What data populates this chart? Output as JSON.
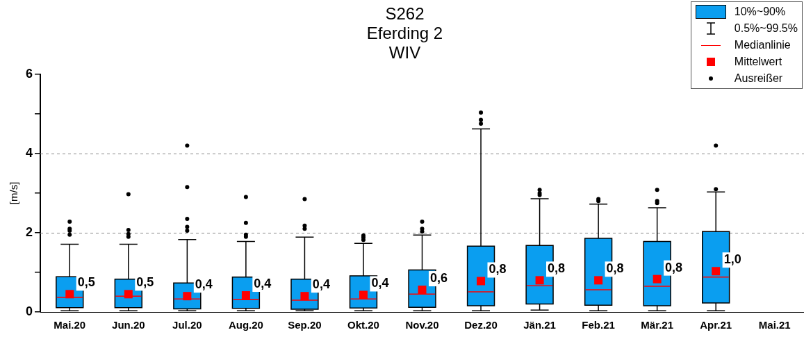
{
  "chart_data": {
    "type": "box",
    "title": "S262\nEferding 2\nWIV",
    "ylabel": "[m/s]",
    "categories": [
      "Mai.20",
      "Jun.20",
      "Jul.20",
      "Aug.20",
      "Sep.20",
      "Okt.20",
      "Nov.20",
      "Dez.20",
      "Jän.21",
      "Feb.21",
      "Mär.21",
      "Apr.21",
      "Mai.21"
    ],
    "series": [
      {
        "name": "10%~90%",
        "color": "#0a9ef0",
        "boxes": [
          {
            "low": 0.03,
            "q1": 0.11,
            "median": 0.37,
            "q3": 0.89,
            "high": 1.71,
            "mean": 0.45,
            "outliers": [
              1.95,
              2.05,
              2.1,
              2.28
            ]
          },
          {
            "low": 0.03,
            "q1": 0.11,
            "median": 0.4,
            "q3": 0.83,
            "high": 1.71,
            "mean": 0.45,
            "outliers": [
              1.9,
              1.97,
              2.07,
              2.97
            ]
          },
          {
            "low": 0.03,
            "q1": 0.08,
            "median": 0.33,
            "q3": 0.73,
            "high": 1.83,
            "mean": 0.4,
            "outliers": [
              2.05,
              2.15,
              2.35,
              3.15,
              4.2
            ]
          },
          {
            "low": 0.03,
            "q1": 0.09,
            "median": 0.31,
            "q3": 0.88,
            "high": 1.78,
            "mean": 0.42,
            "outliers": [
              1.9,
              1.95,
              2.25,
              2.9
            ]
          },
          {
            "low": 0.03,
            "q1": 0.07,
            "median": 0.3,
            "q3": 0.83,
            "high": 1.89,
            "mean": 0.4,
            "outliers": [
              2.1,
              2.18,
              2.85
            ]
          },
          {
            "low": 0.03,
            "q1": 0.1,
            "median": 0.33,
            "q3": 0.91,
            "high": 1.73,
            "mean": 0.43,
            "outliers": [
              1.82,
              1.88,
              1.93
            ]
          },
          {
            "low": 0.03,
            "q1": 0.12,
            "median": 0.45,
            "q3": 1.06,
            "high": 1.94,
            "mean": 0.56,
            "outliers": [
              2.03,
              2.1,
              2.28
            ]
          },
          {
            "low": 0.03,
            "q1": 0.16,
            "median": 0.51,
            "q3": 1.66,
            "high": 4.62,
            "mean": 0.78,
            "outliers": [
              4.75,
              4.85,
              5.03
            ]
          },
          {
            "low": 0.05,
            "q1": 0.2,
            "median": 0.66,
            "q3": 1.68,
            "high": 2.86,
            "mean": 0.8,
            "outliers": [
              2.95,
              3.0,
              3.08
            ]
          },
          {
            "low": 0.03,
            "q1": 0.17,
            "median": 0.56,
            "q3": 1.86,
            "high": 2.72,
            "mean": 0.8,
            "outliers": [
              2.8,
              2.85
            ]
          },
          {
            "low": 0.03,
            "q1": 0.16,
            "median": 0.65,
            "q3": 1.78,
            "high": 2.63,
            "mean": 0.83,
            "outliers": [
              2.75,
              2.8,
              3.08
            ]
          },
          {
            "low": 0.03,
            "q1": 0.23,
            "median": 0.88,
            "q3": 2.03,
            "high": 3.03,
            "mean": 1.03,
            "outliers": [
              3.1,
              4.2
            ]
          },
          null
        ]
      }
    ],
    "ylim": [
      0,
      6
    ],
    "yticks": [
      0,
      {
        "value": 1,
        "label": null
      },
      2,
      {
        "value": 3,
        "label": null
      },
      4,
      {
        "value": 5,
        "label": null
      },
      6
    ],
    "grid": "y",
    "legend": "top right",
    "annotations": [
      "0.5%~99.5%",
      "Medianlinie",
      "Mittelwert",
      "Ausreißer",
      "0,5",
      "0,5",
      "0,4",
      "0,4",
      "0,4",
      "0,4",
      "0,6",
      "0,8",
      "0,8",
      "0,8",
      "0,8",
      "1,0"
    ]
  }
}
